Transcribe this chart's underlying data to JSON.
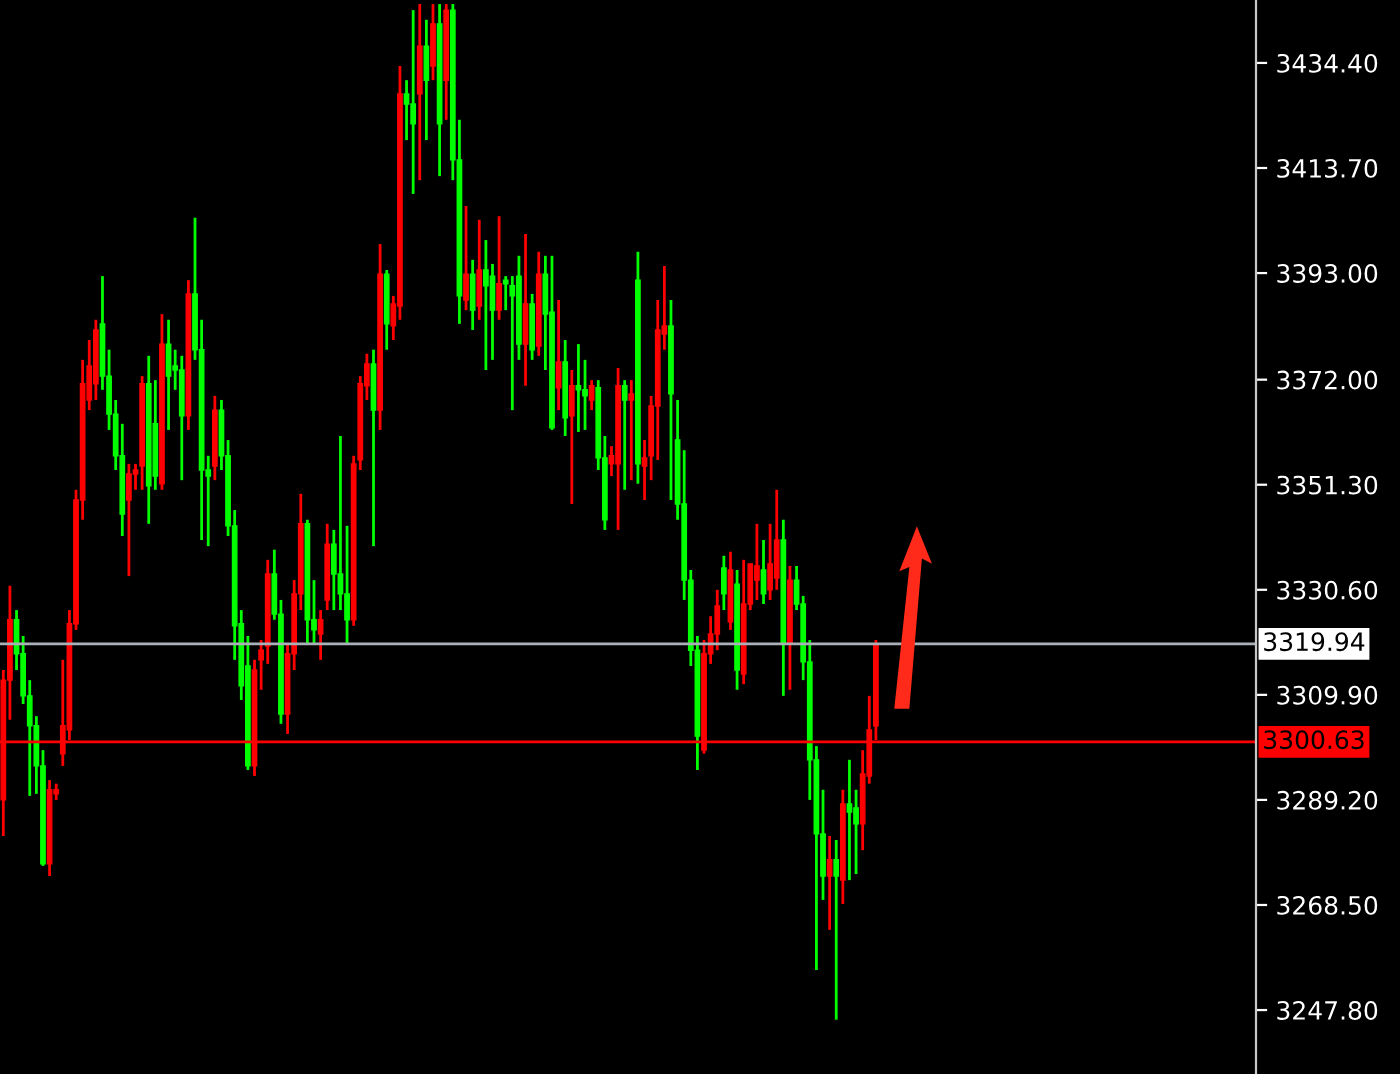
{
  "chart_data": {
    "type": "candlestick",
    "categories": [
      null,
      null,
      null,
      null,
      null,
      null,
      null,
      null,
      null,
      null,
      null,
      null,
      null,
      null,
      null,
      null,
      null,
      null,
      null,
      null,
      null,
      null,
      null,
      null,
      null,
      null,
      null,
      null,
      null,
      null,
      null,
      null,
      null,
      null,
      null,
      null,
      null,
      null,
      null,
      null,
      null,
      null,
      null,
      null,
      null,
      null,
      null,
      null,
      null,
      null,
      null,
      null,
      null,
      null,
      null,
      null,
      null,
      null,
      null,
      null,
      null,
      null,
      null,
      null,
      null,
      null,
      null,
      null,
      null,
      null,
      null,
      null,
      null,
      null,
      null,
      null,
      null,
      null,
      null,
      null,
      null,
      null,
      null,
      null,
      null,
      null,
      null,
      null,
      null,
      null,
      null,
      null,
      null,
      null,
      null,
      null,
      null,
      null,
      null,
      null,
      null,
      null,
      null,
      null,
      null,
      null,
      null,
      null,
      null,
      null,
      null,
      null,
      null,
      null,
      null,
      null,
      null,
      null,
      null,
      null,
      null,
      null,
      null,
      null,
      null,
      null,
      null,
      null,
      null,
      null,
      null,
      null,
      null,
      null,
      null,
      null,
      null,
      null,
      null,
      null,
      null,
      null,
      null,
      null,
      null,
      null,
      null,
      null,
      null,
      null,
      null,
      null,
      null,
      null,
      null,
      null,
      null,
      null,
      null,
      null,
      null,
      null,
      null,
      null,
      null,
      null,
      null,
      null,
      null,
      null,
      null,
      null,
      null,
      null,
      null,
      null,
      null,
      null,
      null,
      null,
      null,
      null,
      null,
      null,
      null,
      null,
      null,
      null,
      null,
      null
    ],
    "ohlc": [
      [
        3289.2,
        3314.8,
        3282.1,
        3312.8
      ],
      [
        3312.8,
        3331.4,
        3305.0,
        3324.7
      ],
      [
        3324.7,
        3326.6,
        3314.8,
        3318.0
      ],
      [
        3318.0,
        3321.5,
        3308.1,
        3309.7
      ],
      [
        3309.7,
        3312.8,
        3290.0,
        3303.8
      ],
      [
        3303.8,
        3305.7,
        3290.4,
        3295.9
      ],
      [
        3295.9,
        3299.0,
        3276.2,
        3276.6
      ],
      [
        3276.6,
        3293.1,
        3274.2,
        3291.2
      ],
      [
        3290.4,
        3292.4,
        3289.2,
        3291.2
      ],
      [
        3298.3,
        3316.8,
        3295.9,
        3303.8
      ],
      [
        3303.0,
        3326.6,
        3301.0,
        3323.9
      ],
      [
        3323.9,
        3350.3,
        3322.7,
        3348.3
      ],
      [
        3348.3,
        3375.9,
        3344.4,
        3371.2
      ],
      [
        3368.0,
        3379.8,
        3366.0,
        3374.7
      ],
      [
        3371.2,
        3383.8,
        3368.0,
        3381.8
      ],
      [
        3383.0,
        3392.4,
        3370.0,
        3372.7
      ],
      [
        3372.7,
        3377.9,
        3362.1,
        3365.2
      ],
      [
        3365.2,
        3368.0,
        3354.2,
        3357.0
      ],
      [
        3357.0,
        3363.3,
        3341.2,
        3345.5
      ],
      [
        3348.3,
        3355.4,
        3333.3,
        3353.4
      ],
      [
        3353.4,
        3355.4,
        3350.3,
        3354.2
      ],
      [
        3355.0,
        3372.7,
        3350.3,
        3371.2
      ],
      [
        3371.2,
        3376.7,
        3343.6,
        3351.1
      ],
      [
        3363.3,
        3371.9,
        3350.3,
        3353.0
      ],
      [
        3351.5,
        3384.9,
        3350.3,
        3379.0
      ],
      [
        3379.0,
        3383.8,
        3362.1,
        3372.7
      ],
      [
        3374.7,
        3377.9,
        3370.0,
        3373.9
      ],
      [
        3373.9,
        3376.7,
        3352.2,
        3364.9
      ],
      [
        3364.9,
        3391.6,
        3362.1,
        3388.9
      ],
      [
        3388.9,
        3403.9,
        3375.9,
        3377.9
      ],
      [
        3377.9,
        3383.8,
        3340.4,
        3354.2
      ],
      [
        3354.2,
        3357.0,
        3339.2,
        3353.0
      ],
      [
        3355.0,
        3368.8,
        3352.2,
        3366.0
      ],
      [
        3366.0,
        3368.0,
        3354.2,
        3357.0
      ],
      [
        3357.0,
        3360.1,
        3341.2,
        3343.2
      ],
      [
        3343.2,
        3346.3,
        3316.8,
        3323.5
      ],
      [
        3323.9,
        3326.6,
        3308.9,
        3311.7
      ],
      [
        3315.6,
        3321.5,
        3295.1,
        3295.9
      ],
      [
        3295.9,
        3316.8,
        3293.9,
        3314.8
      ],
      [
        3316.8,
        3320.7,
        3310.9,
        3318.7
      ],
      [
        3319.5,
        3336.5,
        3316.0,
        3333.7
      ],
      [
        3333.7,
        3338.5,
        3324.7,
        3325.8
      ],
      [
        3325.8,
        3328.6,
        3304.2,
        3306.1
      ],
      [
        3306.1,
        3319.9,
        3302.2,
        3318.0
      ],
      [
        3318.0,
        3332.5,
        3314.8,
        3329.8
      ],
      [
        3329.8,
        3349.5,
        3326.6,
        3343.6
      ],
      [
        3343.6,
        3344.4,
        3319.9,
        3324.7
      ],
      [
        3324.7,
        3332.5,
        3319.9,
        3322.7
      ],
      [
        3321.9,
        3326.6,
        3316.8,
        3324.7
      ],
      [
        3328.6,
        3343.6,
        3326.6,
        3339.6
      ],
      [
        3339.6,
        3342.4,
        3326.6,
        3333.7
      ],
      [
        3333.7,
        3360.9,
        3326.6,
        3329.8
      ],
      [
        3329.8,
        3343.2,
        3319.9,
        3324.7
      ],
      [
        3324.7,
        3357.0,
        3323.5,
        3355.4
      ],
      [
        3356.2,
        3372.7,
        3354.2,
        3371.2
      ],
      [
        3370.8,
        3377.1,
        3368.0,
        3375.1
      ],
      [
        3375.1,
        3377.9,
        3339.2,
        3366.0
      ],
      [
        3366.0,
        3398.7,
        3362.1,
        3392.8
      ],
      [
        3392.8,
        3393.6,
        3377.9,
        3383.0
      ],
      [
        3382.6,
        3388.5,
        3379.8,
        3386.9
      ],
      [
        3386.5,
        3433.8,
        3383.8,
        3428.3
      ],
      [
        3428.3,
        3431.0,
        3419.2,
        3426.3
      ],
      [
        3426.3,
        3444.8,
        3408.6,
        3422.4
      ],
      [
        3428.3,
        3446.0,
        3411.3,
        3437.7
      ],
      [
        3437.7,
        3442.9,
        3419.2,
        3431.0
      ],
      [
        3433.8,
        3446.0,
        3431.0,
        3442.1
      ],
      [
        3442.1,
        3446.0,
        3412.1,
        3422.4
      ],
      [
        3431.0,
        3446.0,
        3423.2,
        3444.8
      ],
      [
        3444.8,
        3446.0,
        3411.3,
        3415.3
      ],
      [
        3415.3,
        3423.2,
        3383.0,
        3388.5
      ],
      [
        3387.7,
        3406.2,
        3385.7,
        3392.8
      ],
      [
        3392.8,
        3395.6,
        3381.8,
        3385.7
      ],
      [
        3386.5,
        3403.5,
        3383.8,
        3393.6
      ],
      [
        3393.6,
        3399.5,
        3373.9,
        3390.5
      ],
      [
        3392.4,
        3394.8,
        3375.9,
        3385.7
      ],
      [
        3385.7,
        3404.2,
        3383.8,
        3390.9
      ],
      [
        3391.6,
        3392.4,
        3385.7,
        3390.9
      ],
      [
        3390.5,
        3392.4,
        3366.0,
        3388.5
      ],
      [
        3392.4,
        3396.4,
        3375.9,
        3379.0
      ],
      [
        3379.0,
        3400.7,
        3370.8,
        3386.9
      ],
      [
        3386.9,
        3388.9,
        3375.9,
        3377.9
      ],
      [
        3378.6,
        3397.2,
        3376.7,
        3392.8
      ],
      [
        3392.8,
        3396.4,
        3373.9,
        3384.9
      ],
      [
        3385.3,
        3396.4,
        3362.1,
        3362.5
      ],
      [
        3370.4,
        3387.7,
        3366.0,
        3375.5
      ],
      [
        3375.5,
        3379.8,
        3360.9,
        3364.5
      ],
      [
        3364.9,
        3373.9,
        3347.5,
        3370.8
      ],
      [
        3370.8,
        3379.0,
        3361.7,
        3370.0
      ],
      [
        3370.0,
        3375.9,
        3362.1,
        3368.8
      ],
      [
        3368.0,
        3371.9,
        3366.0,
        3370.8
      ],
      [
        3370.4,
        3371.9,
        3354.2,
        3356.6
      ],
      [
        3356.6,
        3360.9,
        3342.4,
        3344.4
      ],
      [
        3355.4,
        3358.9,
        3353.0,
        3357.0
      ],
      [
        3355.4,
        3374.3,
        3342.4,
        3370.8
      ],
      [
        3370.8,
        3371.9,
        3350.3,
        3368.0
      ],
      [
        3368.0,
        3371.9,
        3352.2,
        3369.2
      ],
      [
        3391.6,
        3397.2,
        3351.5,
        3355.4
      ],
      [
        3355.0,
        3360.1,
        3348.3,
        3356.6
      ],
      [
        3357.0,
        3368.8,
        3352.2,
        3366.8
      ],
      [
        3366.8,
        3387.7,
        3356.2,
        3381.8
      ],
      [
        3381.0,
        3394.4,
        3377.9,
        3382.6
      ],
      [
        3382.6,
        3387.7,
        3348.3,
        3369.2
      ],
      [
        3360.1,
        3368.0,
        3344.4,
        3347.5
      ],
      [
        3347.5,
        3358.1,
        3328.6,
        3332.5
      ],
      [
        3332.5,
        3334.5,
        3315.6,
        3318.7
      ],
      [
        3318.7,
        3321.5,
        3295.1,
        3301.8
      ],
      [
        3299.0,
        3320.7,
        3298.3,
        3318.0
      ],
      [
        3318.0,
        3325.4,
        3316.0,
        3321.9
      ],
      [
        3321.9,
        3330.6,
        3318.7,
        3327.4
      ],
      [
        3334.9,
        3337.3,
        3326.6,
        3329.8
      ],
      [
        3324.3,
        3338.1,
        3322.7,
        3334.5
      ],
      [
        3331.7,
        3334.5,
        3310.9,
        3314.8
      ],
      [
        3314.0,
        3336.5,
        3312.0,
        3327.8
      ],
      [
        3327.8,
        3335.7,
        3326.6,
        3335.7
      ],
      [
        3332.5,
        3343.6,
        3328.6,
        3335.3
      ],
      [
        3334.5,
        3340.4,
        3327.8,
        3329.8
      ],
      [
        3330.6,
        3343.6,
        3328.6,
        3335.7
      ],
      [
        3332.9,
        3350.3,
        3330.6,
        3340.4
      ],
      [
        3340.4,
        3344.4,
        3309.7,
        3319.9
      ],
      [
        3319.9,
        3335.3,
        3310.9,
        3332.5
      ],
      [
        3332.5,
        3335.3,
        3326.6,
        3327.8
      ],
      [
        3327.8,
        3329.4,
        3312.8,
        3316.4
      ],
      [
        3316.4,
        3320.7,
        3289.2,
        3297.1
      ],
      [
        3297.1,
        3299.8,
        3255.7,
        3282.5
      ],
      [
        3282.5,
        3291.2,
        3269.5,
        3274.2
      ],
      [
        3274.2,
        3282.1,
        3263.6,
        3277.4
      ],
      [
        3277.4,
        3281.3,
        3245.9,
        3274.2
      ],
      [
        3273.4,
        3291.2,
        3268.7,
        3288.4
      ],
      [
        3288.4,
        3297.1,
        3273.4,
        3286.8
      ],
      [
        3287.6,
        3291.2,
        3274.6,
        3284.5
      ],
      [
        3284.5,
        3299.0,
        3279.3,
        3294.3
      ],
      [
        3293.9,
        3309.7,
        3292.4,
        3303.0
      ],
      [
        3303.8,
        3320.7,
        3301.0,
        3319.9
      ],
      null,
      null,
      null,
      null,
      null,
      null,
      null,
      null,
      null,
      null,
      null,
      null,
      null,
      null,
      null,
      null,
      null,
      null,
      null,
      null,
      null,
      null,
      null,
      null,
      null,
      null,
      null,
      null,
      null,
      null,
      null,
      null,
      null,
      null,
      null,
      null,
      null,
      null,
      null,
      null,
      null,
      null,
      null,
      null,
      null,
      null,
      null,
      null,
      null,
      null,
      null,
      null,
      null,
      null,
      null,
      null,
      null
    ],
    "colors": [
      "#ff0000",
      "#ff0000",
      "#00ff00",
      "#00ff00",
      "#00ff00",
      "#00ff00",
      "#00ff00",
      "#ff0000",
      "#ff0000",
      "#ff0000",
      "#ff0000",
      "#ff0000",
      "#ff0000",
      "#ff0000",
      "#ff0000",
      "#00ff00",
      "#00ff00",
      "#00ff00",
      "#00ff00",
      "#ff0000",
      "#ff0000",
      "#ff0000",
      "#00ff00",
      "#00ff00",
      "#ff0000",
      "#00ff00",
      "#00ff00",
      "#00ff00",
      "#ff0000",
      "#00ff00",
      "#00ff00",
      "#00ff00",
      "#ff0000",
      "#00ff00",
      "#00ff00",
      "#00ff00",
      "#00ff00",
      "#00ff00",
      "#ff0000",
      "#ff0000",
      "#ff0000",
      "#00ff00",
      "#00ff00",
      "#ff0000",
      "#ff0000",
      "#ff0000",
      "#00ff00",
      "#00ff00",
      "#ff0000",
      "#ff0000",
      "#00ff00",
      "#00ff00",
      "#00ff00",
      "#ff0000",
      "#ff0000",
      "#ff0000",
      "#00ff00",
      "#ff0000",
      "#00ff00",
      "#ff0000",
      "#ff0000",
      "#00ff00",
      "#00ff00",
      "#ff0000",
      "#00ff00",
      "#ff0000",
      "#00ff00",
      "#ff0000",
      "#00ff00",
      "#00ff00",
      "#ff0000",
      "#00ff00",
      "#ff0000",
      "#00ff00",
      "#00ff00",
      "#ff0000",
      "#00ff00",
      "#00ff00",
      "#00ff00",
      "#ff0000",
      "#00ff00",
      "#ff0000",
      "#00ff00",
      "#00ff00",
      "#ff0000",
      "#00ff00",
      "#ff0000",
      "#00ff00",
      "#00ff00",
      "#ff0000",
      "#00ff00",
      "#00ff00",
      "#ff0000",
      "#ff0000",
      "#00ff00",
      "#ff0000",
      "#00ff00",
      "#ff0000",
      "#ff0000",
      "#ff0000",
      "#ff0000",
      "#00ff00",
      "#00ff00",
      "#00ff00",
      "#00ff00",
      "#00ff00",
      "#ff0000",
      "#ff0000",
      "#ff0000",
      "#00ff00",
      "#ff0000",
      "#00ff00",
      "#ff0000",
      "#ff0000",
      "#ff0000",
      "#00ff00",
      "#ff0000",
      "#ff0000",
      "#00ff00",
      "#ff0000",
      "#00ff00",
      "#00ff00",
      "#00ff00",
      "#00ff00",
      "#00ff00",
      "#ff0000",
      "#00ff00",
      "#ff0000",
      "#00ff00",
      "#00ff00",
      "#ff0000",
      "#ff0000",
      "#ff0000",
      null,
      null,
      null,
      null,
      null,
      null,
      null,
      null,
      null,
      null,
      null,
      null,
      null,
      null,
      null,
      null,
      null,
      null,
      null,
      null,
      null,
      null,
      null,
      null,
      null,
      null,
      null,
      null,
      null,
      null,
      null,
      null,
      null,
      null,
      null,
      null,
      null,
      null,
      null,
      null,
      null,
      null,
      null,
      null,
      null,
      null,
      null,
      null,
      null,
      null,
      null,
      null,
      null,
      null,
      null,
      null,
      null
    ],
    "ylim": [
      3235.2,
      3446.8
    ],
    "yticks": [
      {
        "value": 3247.8,
        "label": "3247.80"
      },
      {
        "value": 3268.5,
        "label": "3268.50"
      },
      {
        "value": 3289.2,
        "label": "3289.20"
      },
      {
        "value": 3309.9,
        "label": "3309.90"
      },
      {
        "value": 3330.6,
        "label": "3330.60"
      },
      {
        "value": 3351.3,
        "label": "3351.30"
      },
      {
        "value": 3372.0,
        "label": "3372.00"
      },
      {
        "value": 3393.0,
        "label": "3393.00"
      },
      {
        "value": 3413.7,
        "label": "3413.70"
      },
      {
        "value": 3434.4,
        "label": "3434.40"
      }
    ],
    "ref_lines": [
      {
        "axis": "y",
        "value": 3319.94,
        "label": "3319.94",
        "color": "#a9b0b8"
      },
      {
        "axis": "y",
        "value": 3300.63,
        "label": "3300.63",
        "color": "#ff0000"
      }
    ],
    "grid": false,
    "legend": false
  }
}
